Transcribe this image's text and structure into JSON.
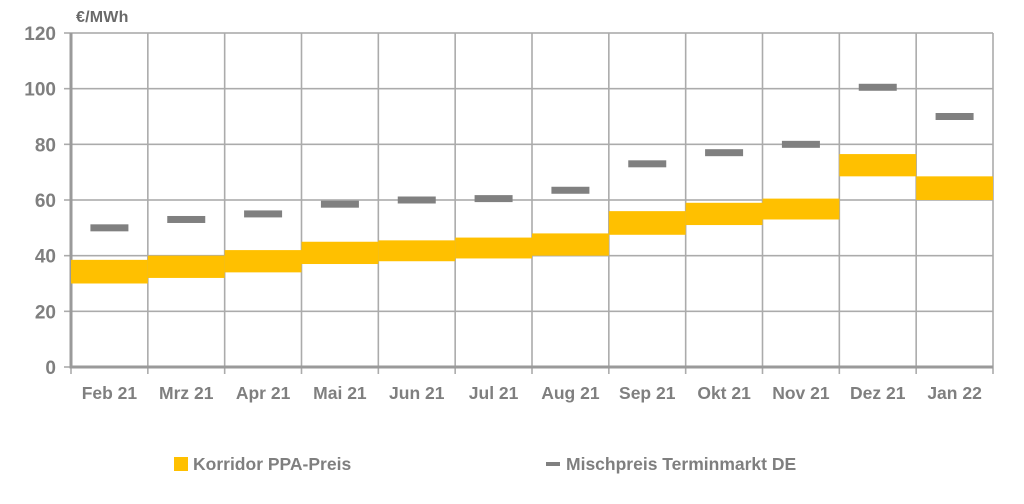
{
  "chart_data": {
    "type": "bar",
    "subtype": "floating-range-bars-with-dash-markers",
    "title": "",
    "ylabel": "€/MWh",
    "xlabel": "",
    "ylim": [
      0,
      120
    ],
    "ytick_step": 20,
    "yticks": [
      0,
      20,
      40,
      60,
      80,
      100,
      120
    ],
    "grid": true,
    "legend_position": "bottom",
    "categories": [
      "Feb 21",
      "Mrz 21",
      "Apr 21",
      "Mai 21",
      "Jun 21",
      "Jul 21",
      "Aug 21",
      "Sep 21",
      "Okt 21",
      "Nov 21",
      "Dez 21",
      "Jan 22"
    ],
    "series": [
      {
        "name": "Korridor PPA-Preis",
        "type": "range_band",
        "color": "#FFC000",
        "low": [
          30,
          32,
          34,
          37,
          38,
          39,
          40,
          47.5,
          51,
          53,
          68.5,
          60
        ],
        "high": [
          38.5,
          40,
          42,
          45,
          45.5,
          46.5,
          48,
          56,
          59,
          60.5,
          76.5,
          68.5
        ]
      },
      {
        "name": "Mischpreis Terminmarkt DE",
        "type": "dash_marker",
        "color": "#808080",
        "values": [
          50,
          53,
          55,
          58.5,
          60,
          60.5,
          63.5,
          73,
          77,
          80,
          100.5,
          90
        ]
      }
    ]
  },
  "colors": {
    "band": "#FFC000",
    "dash": "#808080",
    "grid": "#ABABAB",
    "axis": "#9A9A9A",
    "tick_label": "#7F7F7F",
    "unit_label": "#696969",
    "background": "#FFFFFF"
  }
}
